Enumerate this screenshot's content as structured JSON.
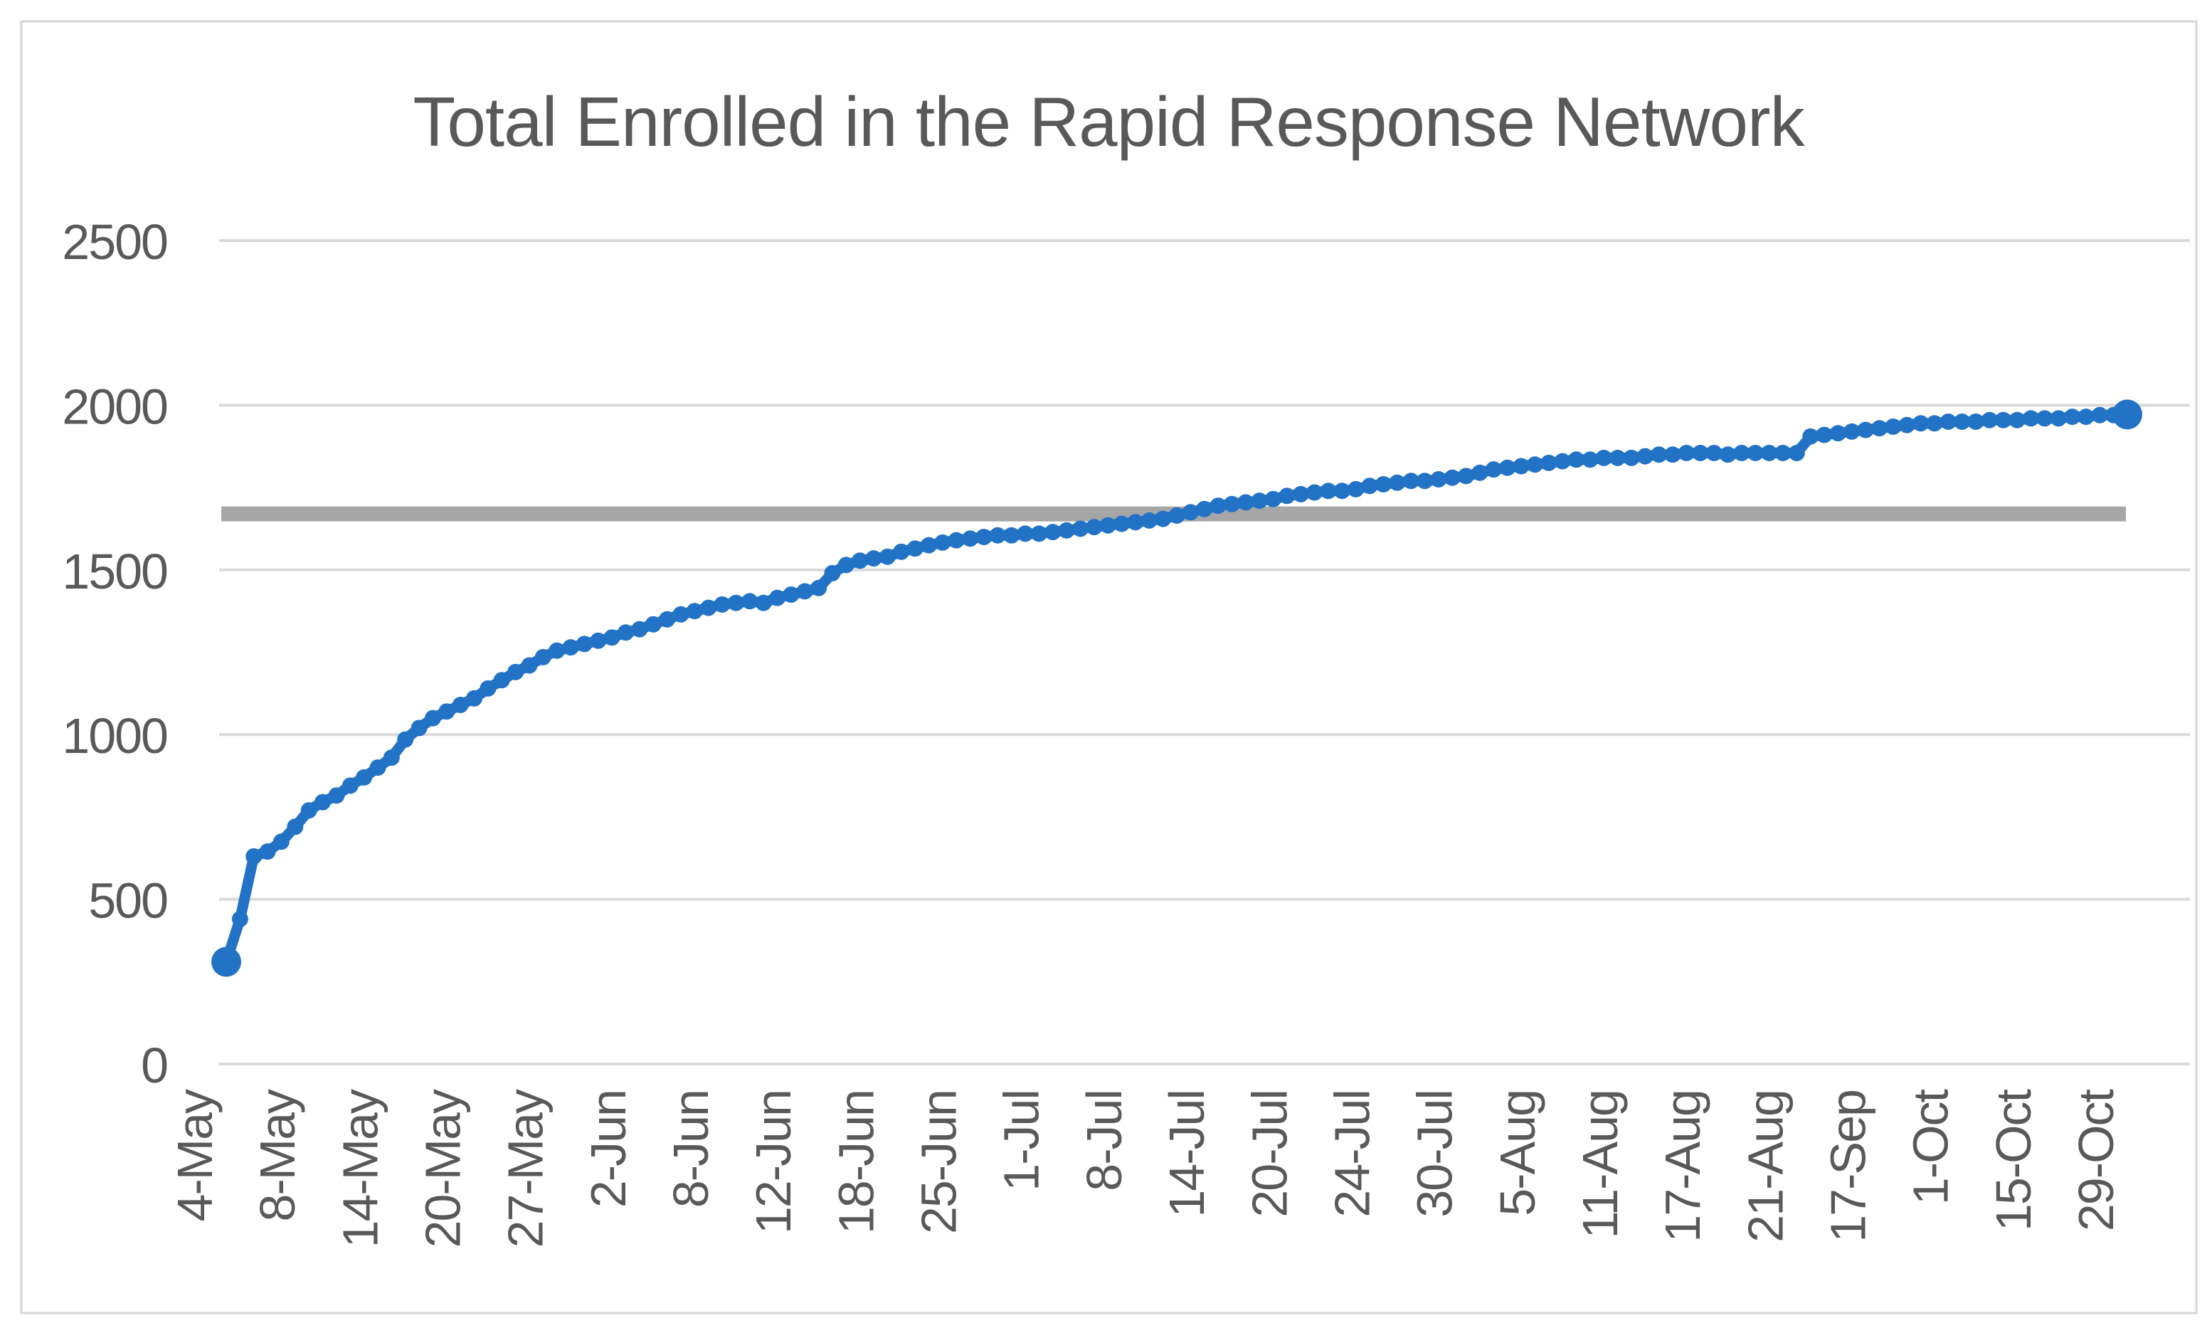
{
  "chart_data": {
    "type": "line",
    "title": "Total Enrolled in the Rapid Response Network",
    "xlabel": "",
    "ylabel": "",
    "ylim": [
      0,
      2500
    ],
    "yticks": [
      0,
      500,
      1000,
      1500,
      2000,
      2500
    ],
    "grid": true,
    "legend": "none",
    "x_labels": [
      "4-May",
      "8-May",
      "14-May",
      "20-May",
      "27-May",
      "2-Jun",
      "8-Jun",
      "12-Jun",
      "18-Jun",
      "25-Jun",
      "1-Jul",
      "8-Jul",
      "14-Jul",
      "20-Jul",
      "24-Jul",
      "30-Jul",
      "5-Aug",
      "11-Aug",
      "17-Aug",
      "21-Aug",
      "17-Sep",
      "1-Oct",
      "15-Oct",
      "29-Oct"
    ],
    "x_label_every_n_points": 6,
    "n_points": 139,
    "series": [
      {
        "name": "Total Enrolled",
        "marker": "circle",
        "color": "#2272C6",
        "values": [
          310,
          440,
          630,
          645,
          675,
          720,
          770,
          795,
          815,
          845,
          870,
          900,
          930,
          985,
          1020,
          1050,
          1070,
          1090,
          1110,
          1140,
          1165,
          1190,
          1210,
          1235,
          1255,
          1265,
          1275,
          1285,
          1295,
          1310,
          1320,
          1335,
          1350,
          1365,
          1375,
          1385,
          1395,
          1400,
          1405,
          1400,
          1415,
          1425,
          1435,
          1445,
          1490,
          1515,
          1528,
          1535,
          1540,
          1555,
          1565,
          1575,
          1583,
          1590,
          1595,
          1600,
          1605,
          1605,
          1610,
          1610,
          1615,
          1620,
          1625,
          1630,
          1635,
          1640,
          1645,
          1650,
          1655,
          1665,
          1675,
          1685,
          1695,
          1700,
          1705,
          1710,
          1715,
          1725,
          1730,
          1735,
          1740,
          1740,
          1745,
          1755,
          1760,
          1765,
          1770,
          1770,
          1775,
          1780,
          1785,
          1795,
          1805,
          1810,
          1815,
          1820,
          1825,
          1830,
          1835,
          1835,
          1840,
          1840,
          1840,
          1845,
          1850,
          1850,
          1855,
          1855,
          1855,
          1850,
          1855,
          1855,
          1855,
          1855,
          1855,
          1905,
          1910,
          1915,
          1920,
          1925,
          1930,
          1935,
          1940,
          1945,
          1945,
          1950,
          1950,
          1950,
          1955,
          1955,
          1955,
          1960,
          1960,
          1960,
          1965,
          1965,
          1970,
          1970,
          1972
        ]
      }
    ],
    "target_line": {
      "name": "target-reference-line",
      "value": 1670,
      "color": "#A6A6A6"
    },
    "colors": {
      "gridline": "#D9D9D9",
      "chart_border": "#D6D6D6",
      "axis_text": "#595959",
      "title_text": "#595959",
      "background": "#FFFFFF"
    }
  }
}
